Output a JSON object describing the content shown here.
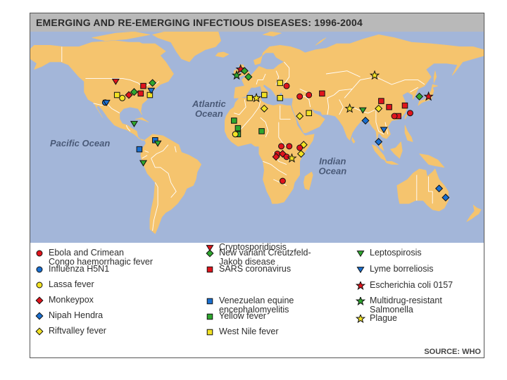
{
  "title": "EMERGING AND RE-EMERGING INFECTIOUS DISEASES: 1996-2004",
  "source": "SOURCE: WHO",
  "map": {
    "ocean_labels": [
      {
        "name": "atlantic-ocean-label",
        "lines": [
          "Atlantic",
          "Ocean"
        ]
      },
      {
        "name": "pacific-ocean-label",
        "lines": [
          "Pacific Ocean"
        ]
      },
      {
        "name": "indian-ocean-label",
        "lines": [
          "Indian",
          "Ocean"
        ]
      }
    ],
    "colors": {
      "ocean": "#a3b6d9",
      "land": "#f5c46e",
      "border": "#ffffff",
      "title_bar": "#b9b9b9"
    }
  },
  "legend": [
    {
      "id": "ebola",
      "lines": [
        "Ebola and Crimean",
        "Congo haemorrhagic fever"
      ],
      "shape": "circle",
      "color": "#e0141c"
    },
    {
      "id": "h5n1",
      "lines": [
        "Influenza H5N1"
      ],
      "shape": "circle",
      "color": "#1a6fd0"
    },
    {
      "id": "lassa",
      "lines": [
        "Lassa fever"
      ],
      "shape": "circle",
      "color": "#f2e224"
    },
    {
      "id": "monkeypox",
      "lines": [
        "Monkeypox"
      ],
      "shape": "diamond",
      "color": "#e0141c"
    },
    {
      "id": "nipah",
      "lines": [
        "Nipah Hendra"
      ],
      "shape": "diamond",
      "color": "#1a6fd0"
    },
    {
      "id": "riftvalley",
      "lines": [
        "Riftvalley fever"
      ],
      "shape": "diamond",
      "color": "#f2e224"
    },
    {
      "id": "vcjd",
      "lines": [
        "New variant Creutzfeld-",
        "Jakob disease"
      ],
      "shape": "diamond",
      "color": "#2fa72f"
    },
    {
      "id": "sars",
      "lines": [
        "SARS coronavirus"
      ],
      "shape": "square",
      "color": "#e0141c"
    },
    {
      "id": "vee",
      "lines": [
        "Venezuelan equine",
        "encephalomyelitis"
      ],
      "shape": "square",
      "color": "#1a6fd0"
    },
    {
      "id": "yellow",
      "lines": [
        "Yellow fever"
      ],
      "shape": "square",
      "color": "#2fa72f"
    },
    {
      "id": "westnile",
      "lines": [
        "West Nile fever"
      ],
      "shape": "square",
      "color": "#f2e224"
    },
    {
      "id": "crypto",
      "lines": [
        "Cryptosporidiosis"
      ],
      "shape": "triangle-down",
      "color": "#e0141c"
    },
    {
      "id": "lepto",
      "lines": [
        "Leptospirosis"
      ],
      "shape": "triangle-down",
      "color": "#2fa72f"
    },
    {
      "id": "lyme",
      "lines": [
        "Lyme borreliosis"
      ],
      "shape": "triangle-down",
      "color": "#1a6fd0"
    },
    {
      "id": "ecoli",
      "lines": [
        "Escherichia coli 0157"
      ],
      "shape": "star",
      "color": "#e0141c"
    },
    {
      "id": "mdrsalmonella",
      "lines": [
        "Multidrug-resistant",
        "Salmonella"
      ],
      "shape": "star",
      "color": "#2fa72f"
    },
    {
      "id": "plague",
      "lines": [
        "Plague"
      ],
      "shape": "star",
      "color": "#f2e224"
    }
  ],
  "outbreaks": [
    {
      "disease": "crypto",
      "lon": -100,
      "lat": 47
    },
    {
      "disease": "sars",
      "lon": -79,
      "lat": 44
    },
    {
      "disease": "vcjd",
      "lon": -72,
      "lat": 46
    },
    {
      "disease": "vcjd",
      "lon": -86,
      "lat": 40
    },
    {
      "disease": "sars",
      "lon": -81,
      "lat": 39
    },
    {
      "disease": "westnile",
      "lon": -74,
      "lat": 38
    },
    {
      "disease": "monkeypox",
      "lon": -90,
      "lat": 38
    },
    {
      "disease": "lyme",
      "lon": -73,
      "lat": 41
    },
    {
      "disease": "westnile",
      "lon": -99,
      "lat": 38
    },
    {
      "disease": "lassa",
      "lon": -95,
      "lat": 36
    },
    {
      "disease": "h5n1",
      "lon": -108,
      "lat": 33
    },
    {
      "disease": "lyme",
      "lon": -107,
      "lat": 33
    },
    {
      "disease": "lepto",
      "lon": -86,
      "lat": 19
    },
    {
      "disease": "vee",
      "lon": -70,
      "lat": 8
    },
    {
      "disease": "vee",
      "lon": -82,
      "lat": 2
    },
    {
      "disease": "lepto",
      "lon": -79,
      "lat": -7
    },
    {
      "disease": "lepto",
      "lon": -68,
      "lat": 6
    },
    {
      "disease": "ecoli",
      "lon": -5,
      "lat": 55
    },
    {
      "disease": "vcjd",
      "lon": -2,
      "lat": 54
    },
    {
      "disease": "mdrsalmonella",
      "lon": -8,
      "lat": 51
    },
    {
      "disease": "vcjd",
      "lon": 1,
      "lat": 50
    },
    {
      "disease": "westnile",
      "lon": 25,
      "lat": 46
    },
    {
      "disease": "westnile",
      "lon": 13,
      "lat": 38
    },
    {
      "disease": "westnile",
      "lon": 2,
      "lat": 36
    },
    {
      "disease": "plague",
      "lon": 7,
      "lat": 36
    },
    {
      "disease": "ebola",
      "lon": 30,
      "lat": 44
    },
    {
      "disease": "ebola",
      "lon": 40,
      "lat": 37
    },
    {
      "disease": "ebola",
      "lon": 47,
      "lat": 38
    },
    {
      "disease": "sars",
      "lon": 57,
      "lat": 39
    },
    {
      "disease": "westnile",
      "lon": 25,
      "lat": 36
    },
    {
      "disease": "riftvalley",
      "lon": 40,
      "lat": 24
    },
    {
      "disease": "westnile",
      "lon": 47,
      "lat": 26
    },
    {
      "disease": "riftvalley",
      "lon": 13,
      "lat": 29
    },
    {
      "disease": "yellow",
      "lon": -10,
      "lat": 21
    },
    {
      "disease": "yellow",
      "lon": -7,
      "lat": 16
    },
    {
      "disease": "yellow",
      "lon": -7,
      "lat": 12
    },
    {
      "disease": "lassa",
      "lon": -9,
      "lat": 12
    },
    {
      "disease": "yellow",
      "lon": 11,
      "lat": 14
    },
    {
      "disease": "riftvalley",
      "lon": 43,
      "lat": 5
    },
    {
      "disease": "ebola",
      "lon": 26,
      "lat": 4
    },
    {
      "disease": "ebola",
      "lon": 32,
      "lat": 4
    },
    {
      "disease": "ebola",
      "lon": 40,
      "lat": 3
    },
    {
      "disease": "ebola",
      "lon": 23,
      "lat": -1
    },
    {
      "disease": "monkeypox",
      "lon": 27,
      "lat": -1
    },
    {
      "disease": "ebola",
      "lon": 30,
      "lat": -3
    },
    {
      "disease": "monkeypox",
      "lon": 22,
      "lat": -3
    },
    {
      "disease": "plague",
      "lon": 34,
      "lat": -4
    },
    {
      "disease": "ebola",
      "lon": 27,
      "lat": -19
    },
    {
      "disease": "riftvalley",
      "lon": 41,
      "lat": -1
    },
    {
      "disease": "plague",
      "lon": 97,
      "lat": 51
    },
    {
      "disease": "plague",
      "lon": 78,
      "lat": 29
    },
    {
      "disease": "lepto",
      "lon": 88,
      "lat": 28
    },
    {
      "disease": "riftvalley",
      "lon": 100,
      "lat": 29
    },
    {
      "disease": "sars",
      "lon": 102,
      "lat": 34
    },
    {
      "disease": "sars",
      "lon": 108,
      "lat": 30
    },
    {
      "disease": "sars",
      "lon": 115,
      "lat": 24
    },
    {
      "disease": "sars",
      "lon": 120,
      "lat": 31
    },
    {
      "disease": "ebola",
      "lon": 112,
      "lat": 24
    },
    {
      "disease": "ebola",
      "lon": 124,
      "lat": 26
    },
    {
      "disease": "vcjd",
      "lon": 131,
      "lat": 37
    },
    {
      "disease": "ecoli",
      "lon": 138,
      "lat": 37
    },
    {
      "disease": "nipah",
      "lon": 90,
      "lat": 21
    },
    {
      "disease": "nipah",
      "lon": 100,
      "lat": 7
    },
    {
      "disease": "lyme",
      "lon": 104,
      "lat": 15
    },
    {
      "disease": "nipah",
      "lon": 146,
      "lat": -24
    },
    {
      "disease": "nipah",
      "lon": 151,
      "lat": -30
    }
  ]
}
